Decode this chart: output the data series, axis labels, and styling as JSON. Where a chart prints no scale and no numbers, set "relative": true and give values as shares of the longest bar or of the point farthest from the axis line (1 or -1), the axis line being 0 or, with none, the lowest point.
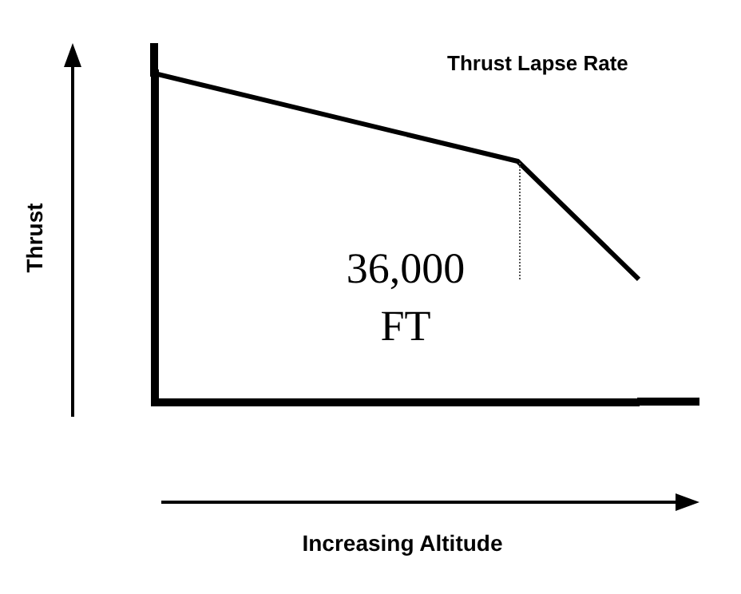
{
  "chart_data": {
    "type": "line",
    "title": "Thrust Lapse Rate",
    "ylabel": "Thrust",
    "relative": true,
    "categories": [
      null,
      null,
      null,
      null,
      null
    ],
    "series": [
      {
        "color": "#000000",
        "values": [
          1,
          0.911,
          0.822,
          0.733,
          0.374
        ]
      }
    ],
    "annotations": [
      "36,000\nFT",
      "Increasing Altitude"
    ],
    "marker": "none",
    "line_style": "solid",
    "legend": false,
    "grid": false,
    "tick_labels": false
  }
}
